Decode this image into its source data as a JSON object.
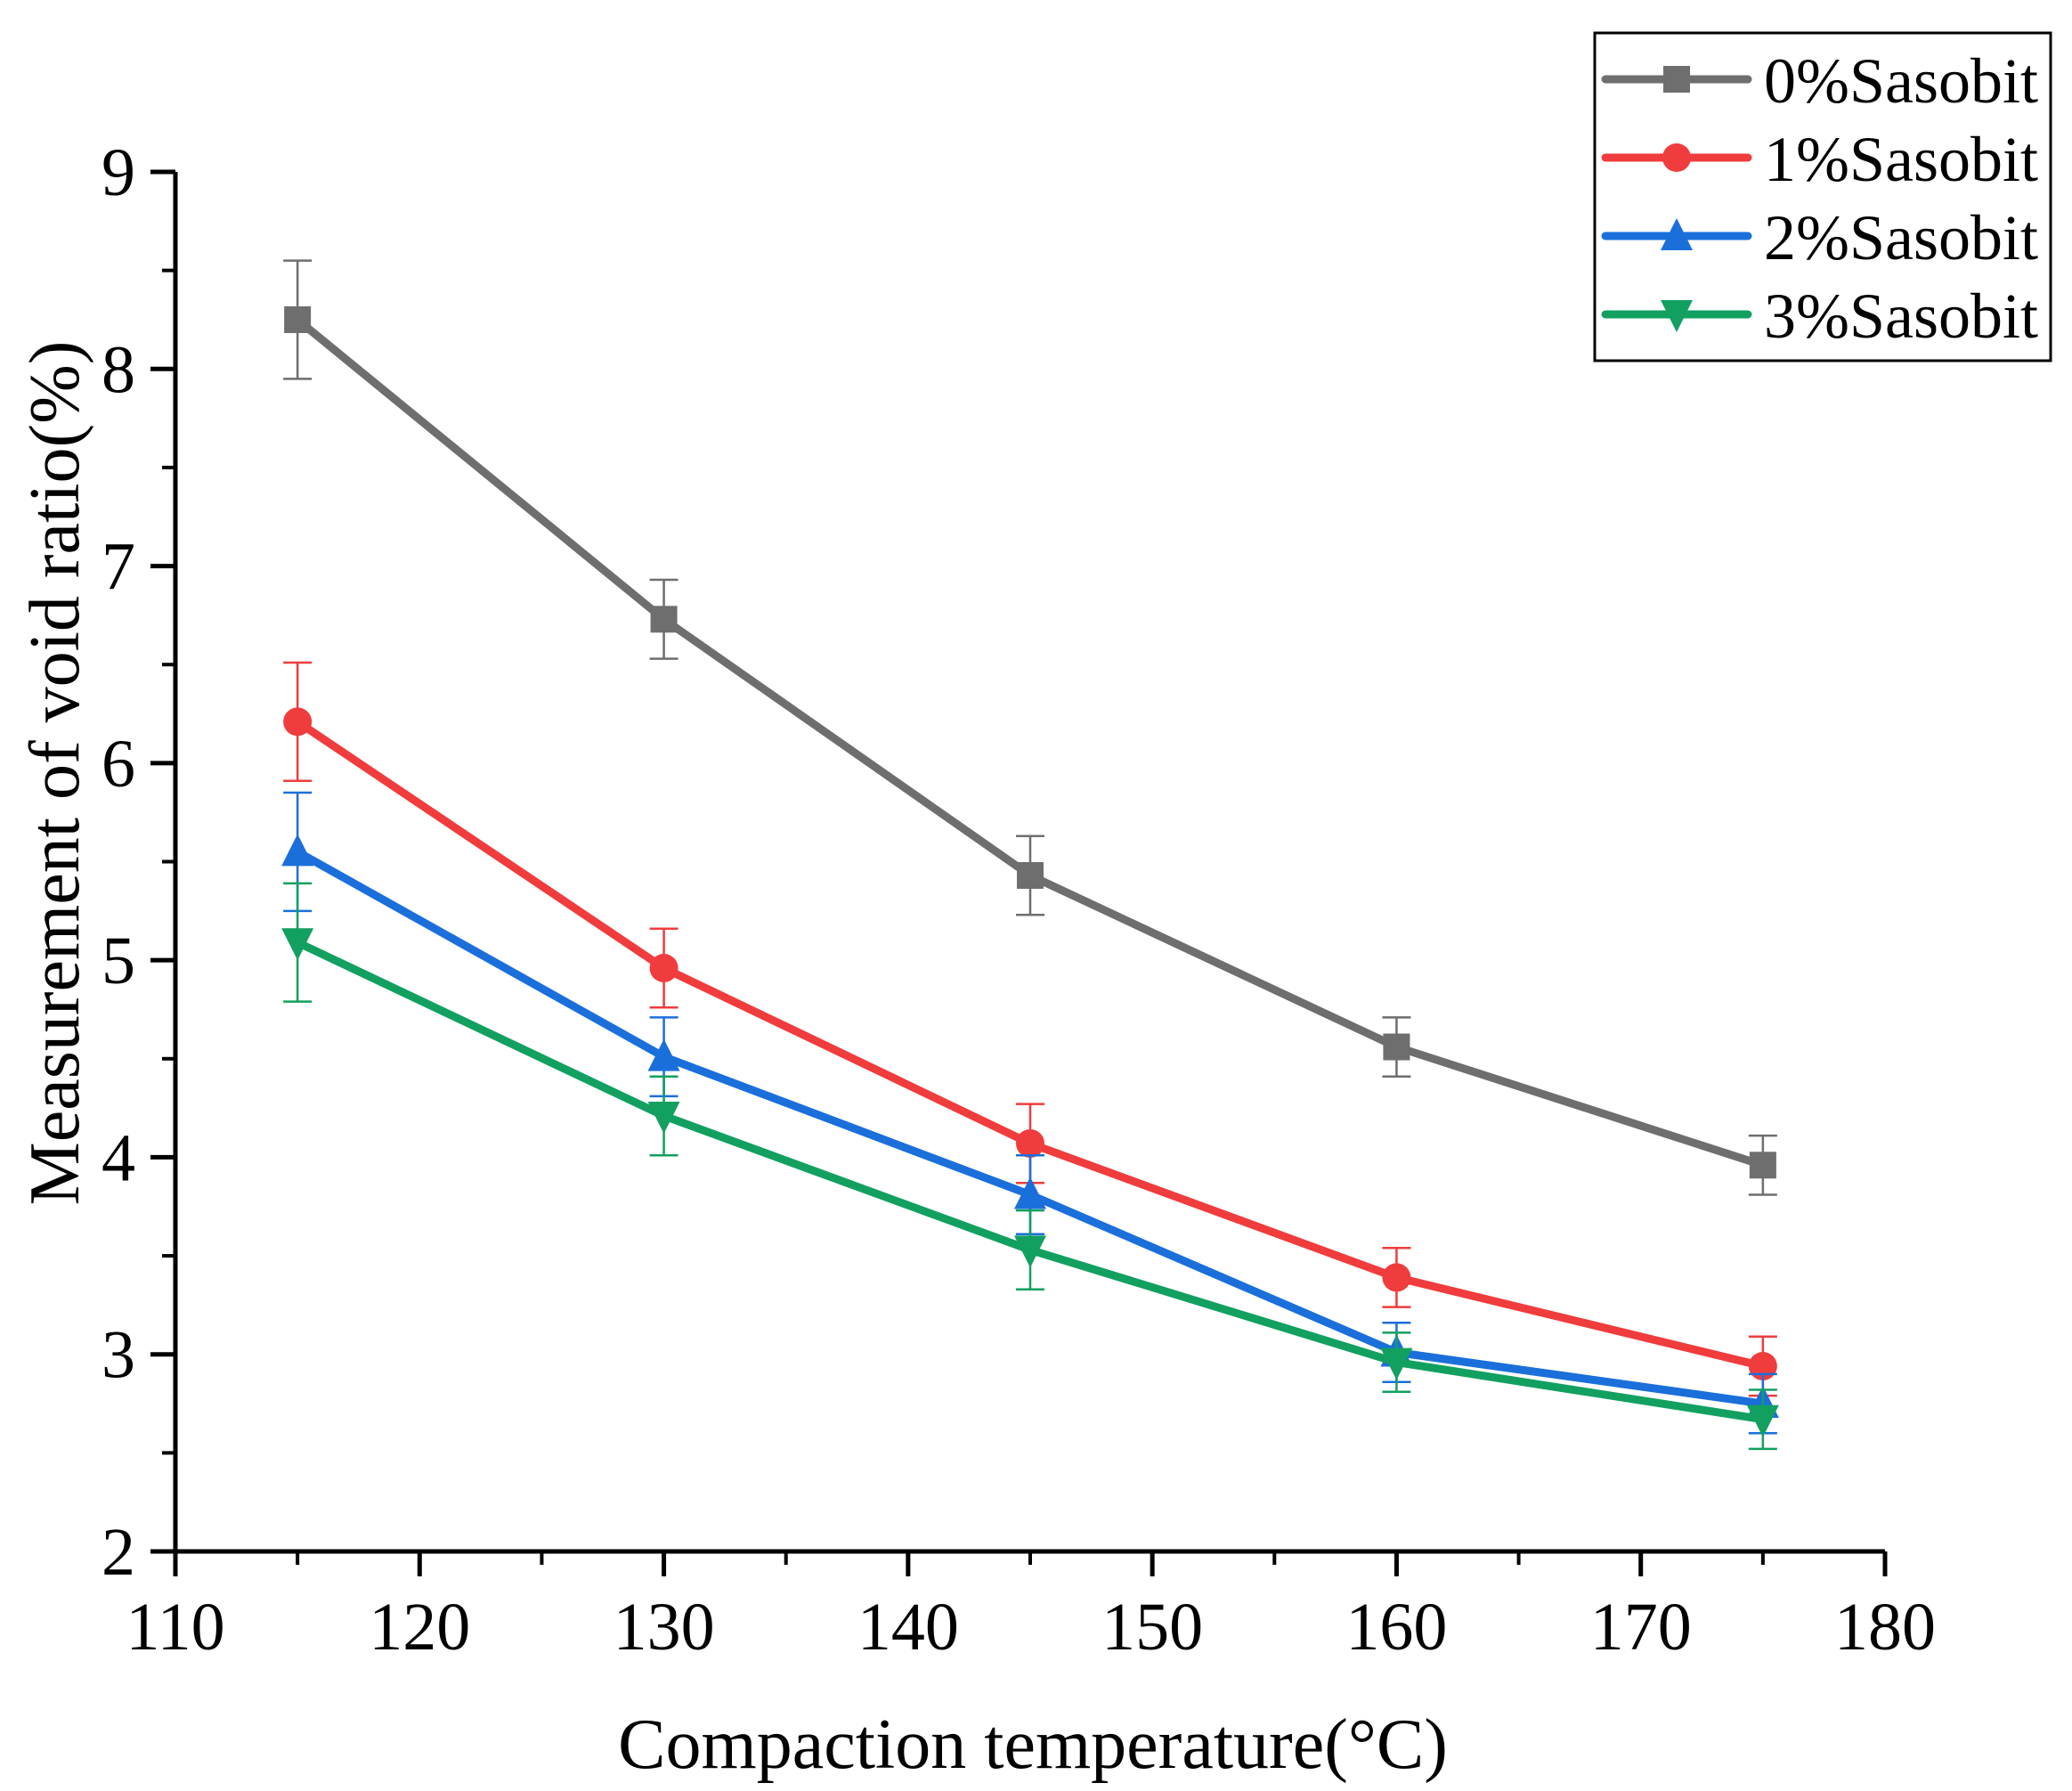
{
  "chart_data": {
    "type": "line",
    "title": "",
    "xlabel": "Compaction temperature(°C)",
    "ylabel": "Measurement of void ratio(%)",
    "xlim": [
      110,
      180
    ],
    "ylim": [
      2,
      9
    ],
    "x_ticks": [
      110,
      120,
      130,
      140,
      150,
      160,
      170,
      180
    ],
    "y_ticks": [
      2,
      3,
      4,
      5,
      6,
      7,
      8,
      9
    ],
    "x_tick_labels": [
      "110",
      "120",
      "130",
      "140",
      "150",
      "160",
      "170",
      "180"
    ],
    "y_tick_labels": [
      "2",
      "3",
      "4",
      "5",
      "6",
      "7",
      "8",
      "9"
    ],
    "grid": false,
    "legend_position": "top-right",
    "x": [
      115,
      130,
      145,
      160,
      175
    ],
    "series": [
      {
        "name": "0%Sasobit",
        "color": "#6e6e6e",
        "marker": "square",
        "values": [
          8.25,
          6.73,
          5.43,
          4.56,
          3.96
        ],
        "errors": [
          0.3,
          0.2,
          0.2,
          0.15,
          0.15
        ]
      },
      {
        "name": "1%Sasobit",
        "color": "#f03c3c",
        "marker": "circle",
        "values": [
          6.21,
          4.96,
          4.07,
          3.39,
          2.94
        ],
        "errors": [
          0.3,
          0.2,
          0.2,
          0.15,
          0.15
        ]
      },
      {
        "name": "2%Sasobit",
        "color": "#1a6fdb",
        "marker": "triangle-up",
        "values": [
          5.55,
          4.51,
          3.81,
          3.01,
          2.75
        ],
        "errors": [
          0.3,
          0.2,
          0.2,
          0.15,
          0.15
        ]
      },
      {
        "name": "3%Sasobit",
        "color": "#12a060",
        "marker": "triangle-down",
        "values": [
          5.09,
          4.21,
          3.53,
          2.96,
          2.67
        ],
        "errors": [
          0.3,
          0.2,
          0.2,
          0.15,
          0.15
        ]
      }
    ]
  }
}
